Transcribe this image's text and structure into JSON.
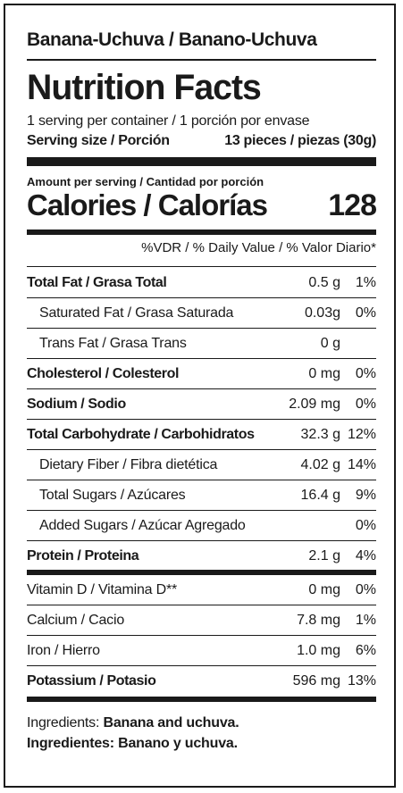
{
  "product": "Banana-Uchuva / Banano-Uchuva",
  "title": "Nutrition Facts",
  "servings_per_container": "1 serving per container / 1 porción por envase",
  "serving_size_label": "Serving size / Porción",
  "serving_size_value": "13 pieces / piezas (30g)",
  "amount_per_serving": "Amount per serving / Cantidad por porción",
  "calories_label": "Calories / Calorías",
  "calories_value": "128",
  "dv_header": "%VDR / % Daily Value / % Valor Diario*",
  "nutrients": [
    {
      "name": "Total Fat / Grasa Total",
      "amount": "0.5 g",
      "dv": "1%",
      "bold": true
    },
    {
      "name": "Saturated Fat / Grasa Saturada",
      "amount": "0.03g",
      "dv": "0%",
      "indent": true
    },
    {
      "name": "Trans Fat / Grasa Trans",
      "amount": "0 g",
      "dv": "",
      "indent": true
    },
    {
      "name": "Cholesterol / Colesterol",
      "amount": "0 mg",
      "dv": "0%",
      "bold": true
    },
    {
      "name": "Sodium / Sodio",
      "amount": "2.09 mg",
      "dv": "0%",
      "bold": true
    },
    {
      "name": "Total Carbohydrate / Carbohidratos",
      "amount": "32.3 g",
      "dv": "12%",
      "bold": true
    },
    {
      "name": "Dietary Fiber / Fibra dietética",
      "amount": "4.02 g",
      "dv": "14%",
      "indent": true
    },
    {
      "name": "Total Sugars / Azúcares",
      "amount": "16.4 g",
      "dv": "9%",
      "indent": true
    },
    {
      "name": "Added Sugars / Azúcar Agregado",
      "amount": "",
      "dv": "0%",
      "indent": true
    },
    {
      "name": "Protein / Proteina",
      "amount": "2.1 g",
      "dv": "4%",
      "bold": true
    }
  ],
  "vitamins": [
    {
      "name": "Vitamin D / Vitamina D**",
      "amount": "0 mg",
      "dv": "0%"
    },
    {
      "name": "Calcium / Cacio",
      "amount": "7.8 mg",
      "dv": "1%"
    },
    {
      "name": "Iron / Hierro",
      "amount": "1.0 mg",
      "dv": "6%"
    },
    {
      "name": "Potassium / Potasio",
      "amount": "596 mg",
      "dv": "13%",
      "bold": true
    }
  ],
  "ingredients_en_label": "Ingredients:",
  "ingredients_en": "Banana and uchuva.",
  "ingredients_es_label": "Ingredientes:",
  "ingredients_es": "Banano y uchuva.",
  "colors": {
    "ink": "#1a1a1a",
    "background": "#ffffff"
  }
}
